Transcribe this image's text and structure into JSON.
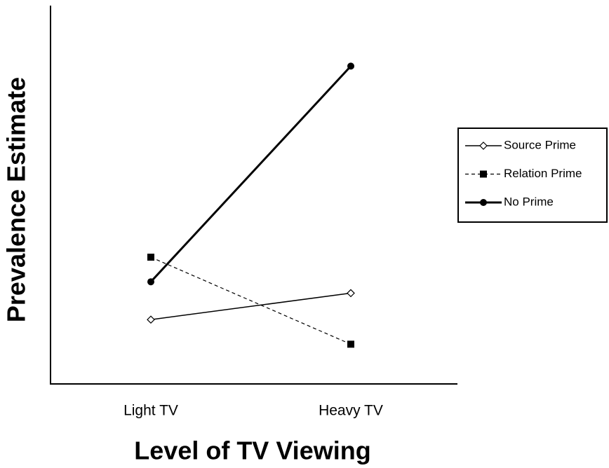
{
  "chart_data": {
    "type": "line",
    "xlabel": "Level of TV Viewing",
    "ylabel": "Prevalence Estimate",
    "categories": [
      "Light TV",
      "Heavy TV"
    ],
    "ylim": [
      0,
      100
    ],
    "series": [
      {
        "name": "Source Prime",
        "color": "#000000",
        "values": [
          17,
          24
        ],
        "marker": "diamond",
        "line_style": "solid",
        "line_width": 1.5
      },
      {
        "name": "Relation Prime",
        "color": "#000000",
        "values": [
          33.5,
          10.5
        ],
        "marker": "square",
        "line_style": "dashed",
        "line_width": 1.2
      },
      {
        "name": "No Prime",
        "color": "#000000",
        "values": [
          27,
          84
        ],
        "marker": "circle",
        "line_style": "solid",
        "line_width": 3
      }
    ],
    "legend": "right"
  }
}
